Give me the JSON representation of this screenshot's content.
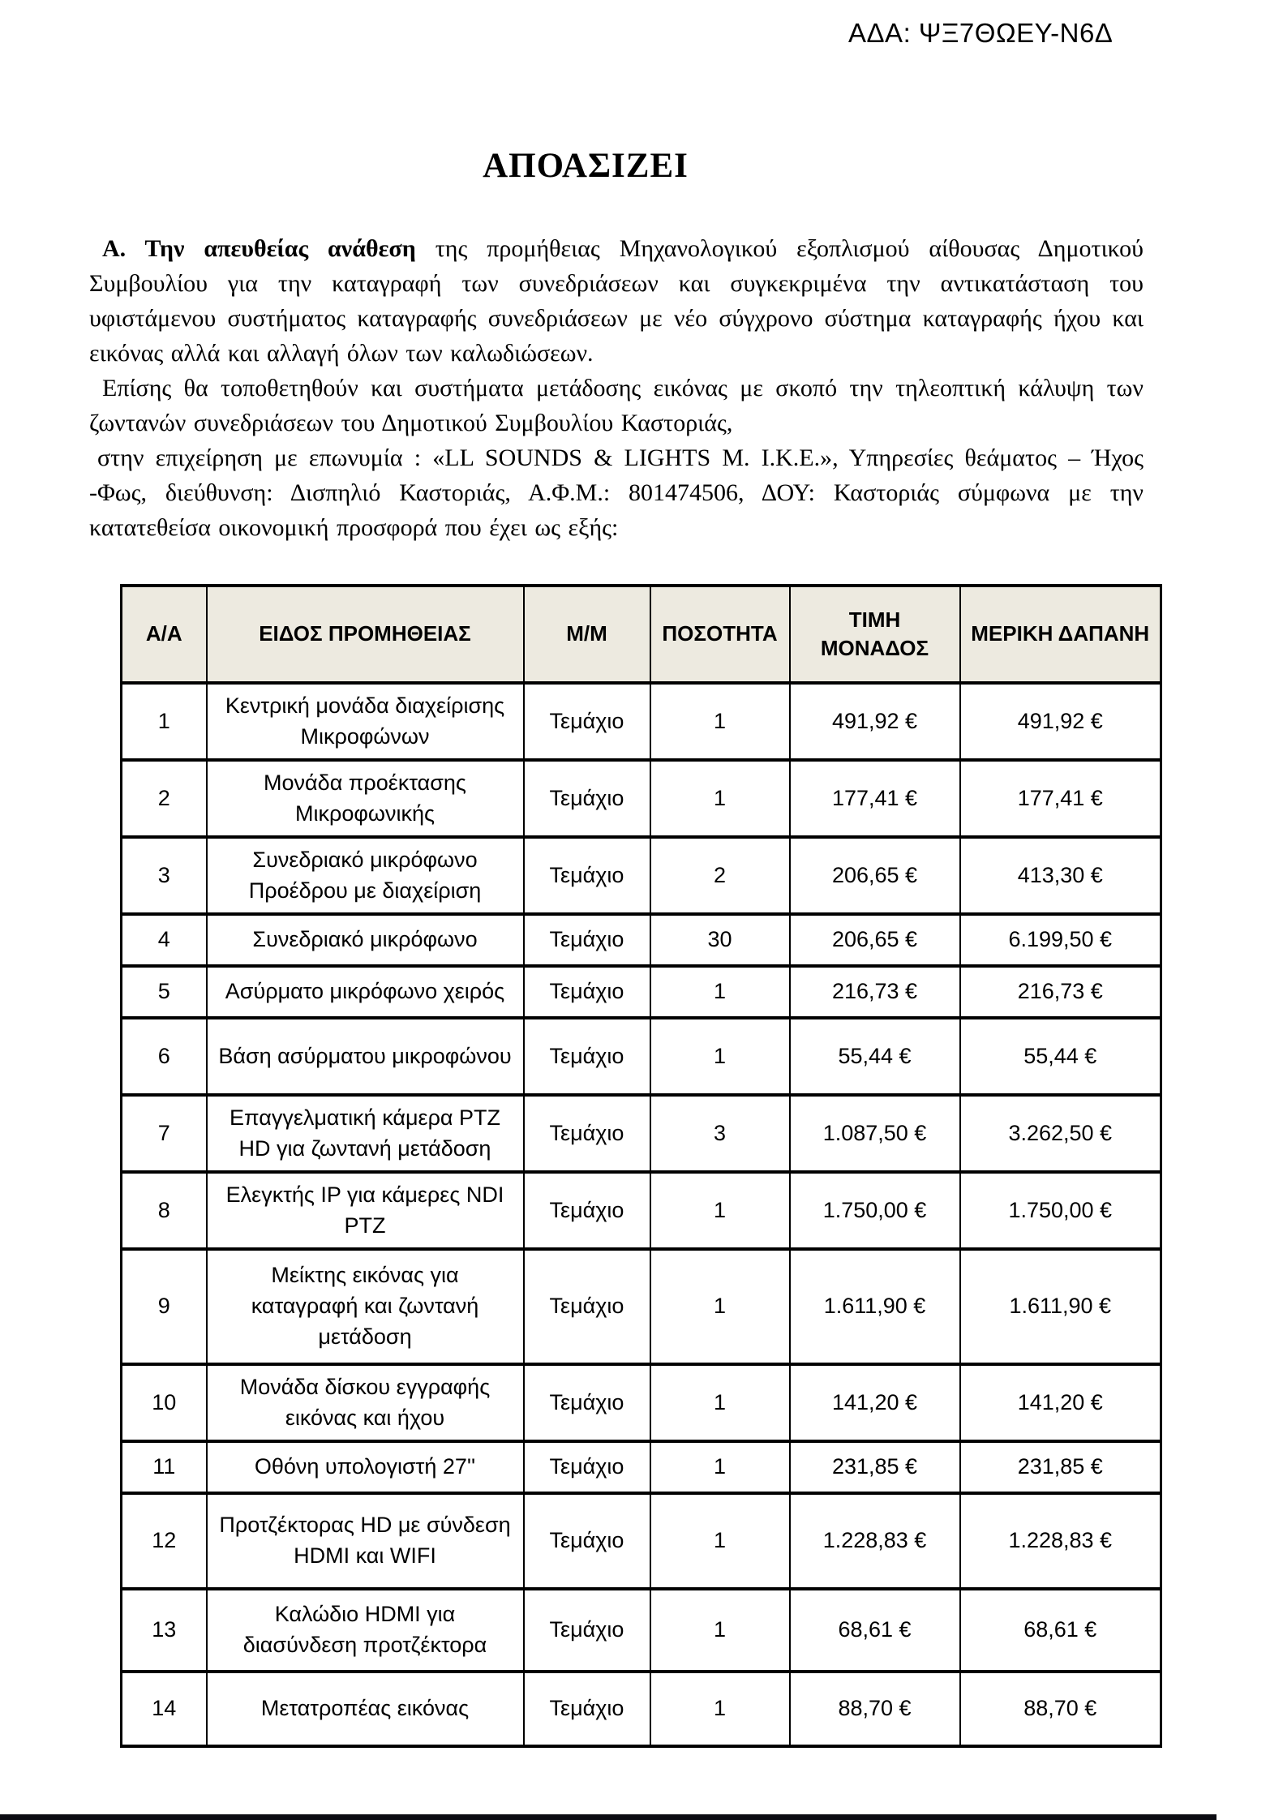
{
  "header": {
    "ada": "ΑΔΑ: ΨΞ7ΘΩΕΥ-Ν6Δ"
  },
  "title": "ΑΠΟΑΣΙΖΕΙ",
  "paragraphs": {
    "p1_lead": "Α. Την απευθείας ανάθεση",
    "p1_rest": "της προμήθειας Μηχανολογικού εξοπλισμού αίθουσας Δημοτικού Συμβουλίου για την καταγραφή των συνεδριάσεων και συγκεκριμένα την αντικατάσταση του υφιστάμενου συστήματος καταγραφής συνεδριάσεων με νέο σύγχρονο σύστημα καταγραφής ήχου και εικόνας αλλά και αλλαγή όλων των καλωδιώσεων.",
    "p2": "Επίσης θα τοποθετηθούν και συστήματα μετάδοσης εικόνας με σκοπό την τηλεοπτική κάλυψη των ζωντανών συνεδριάσεων του Δημοτικού Συμβουλίου Καστοριάς,",
    "p3": "στην επιχείρηση με επωνυμία : «LL SOUNDS & LIGHTS Μ. Ι.Κ.Ε.», Υπηρεσίες θεάματος – Ήχος -Φως, διεύθυνση: Δισπηλιό Καστοριάς, Α.Φ.Μ.: 801474506, ΔΟΥ: Καστοριάς σύμφωνα με την κατατεθείσα οικονομική προσφορά που έχει ως εξής:"
  },
  "table": {
    "headers": [
      "Α/Α",
      "ΕΙΔΟΣ ΠΡΟΜΗΘΕΙΑΣ",
      "Μ/Μ",
      "ΠΟΣΟΤΗΤΑ",
      "ΤΙΜΗ\nΜΟΝΑΔΟΣ",
      "ΜΕΡΙΚΗ ΔΑΠΑΝΗ"
    ],
    "rows": [
      [
        "1",
        "Κεντρική μονάδα διαχείρισης Μικροφώνων",
        "Τεμάχιο",
        "1",
        "491,92 €",
        "491,92 €"
      ],
      [
        "2",
        "Μονάδα προέκτασης Μικροφωνικής",
        "Τεμάχιο",
        "1",
        "177,41 €",
        "177,41 €"
      ],
      [
        "3",
        "Συνεδριακό μικρόφωνο Προέδρου με διαχείριση",
        "Τεμάχιο",
        "2",
        "206,65 €",
        "413,30 €"
      ],
      [
        "4",
        "Συνεδριακό μικρόφωνο",
        "Τεμάχιο",
        "30",
        "206,65 €",
        "6.199,50 €"
      ],
      [
        "5",
        "Ασύρματο μικρόφωνο χειρός",
        "Τεμάχιο",
        "1",
        "216,73 €",
        "216,73 €"
      ],
      [
        "6",
        "Βάση ασύρματου μικροφώνου",
        "Τεμάχιο",
        "1",
        "55,44 €",
        "55,44 €"
      ],
      [
        "7",
        "Επαγγελματική κάμερα PTZ HD για ζωντανή μετάδοση",
        "Τεμάχιο",
        "3",
        "1.087,50 €",
        "3.262,50 €"
      ],
      [
        "8",
        "Ελεγκτής IP για κάμερες NDI PTZ",
        "Τεμάχιο",
        "1",
        "1.750,00 €",
        "1.750,00 €"
      ],
      [
        "9",
        "Μείκτης εικόνας για καταγραφή και ζωντανή μετάδοση",
        "Τεμάχιο",
        "1",
        "1.611,90 €",
        "1.611,90 €"
      ],
      [
        "10",
        "Μονάδα δίσκου εγγραφής εικόνας και ήχου",
        "Τεμάχιο",
        "1",
        "141,20 €",
        "141,20 €"
      ],
      [
        "11",
        "Οθόνη υπολογιστή 27''",
        "Τεμάχιο",
        "1",
        "231,85 €",
        "231,85 €"
      ],
      [
        "12",
        "Προτζέκτορας HD με σύνδεση HDMI και WIFI",
        "Τεμάχιο",
        "1",
        "1.228,83 €",
        "1.228,83 €"
      ],
      [
        "13",
        "Καλώδιο HDMI για διασύνδεση προτζέκτορα",
        "Τεμάχιο",
        "1",
        "68,61 €",
        "68,61 €"
      ],
      [
        "14",
        "Μετατροπέας εικόνας",
        "Τεμάχιο",
        "1",
        "88,70 €",
        "88,70 €"
      ]
    ]
  },
  "colors": {
    "header_bg": "#edeae0",
    "text": "#000000"
  }
}
